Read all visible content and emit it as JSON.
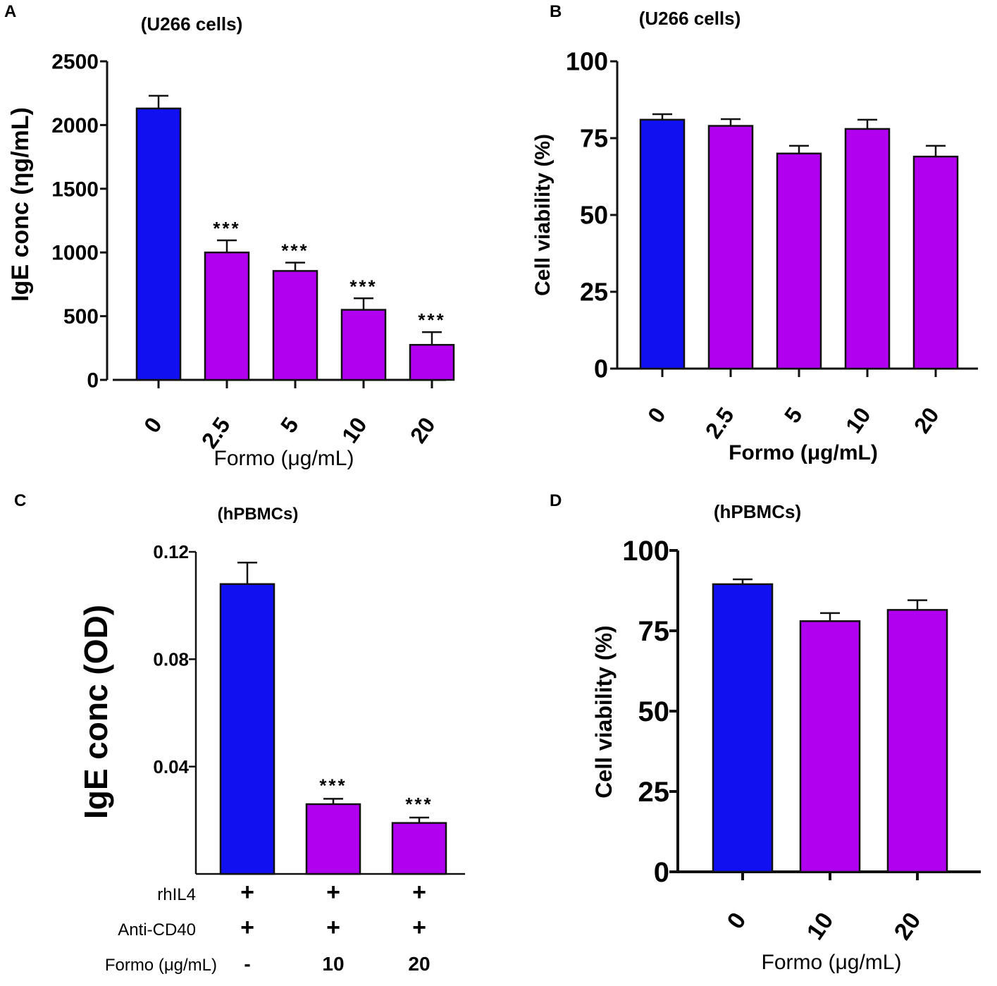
{
  "colors": {
    "control_bar": "#1010f0",
    "treated_bar": "#b100f0",
    "axis": "#111111"
  },
  "chart_data": [
    {
      "panel": "A",
      "type": "bar",
      "title": "(U266 cells)",
      "ylabel": "IgE conc  (ηg/mL)",
      "xlabel": "Formo (μg/mL)",
      "categories": [
        "0",
        "2.5",
        "5",
        "10",
        "20"
      ],
      "values": [
        2130,
        1000,
        855,
        550,
        275
      ],
      "errors": [
        100,
        95,
        65,
        90,
        100
      ],
      "significance": [
        "",
        "***",
        "***",
        "***",
        "***"
      ],
      "ylim": [
        0,
        2500
      ],
      "yticks": [
        "0",
        "500",
        "1000",
        "1500",
        "2000",
        "2500"
      ]
    },
    {
      "panel": "B",
      "type": "bar",
      "title": "(U266 cells)",
      "ylabel": "Cell viability  (%)",
      "xlabel": "Formo (μg/mL)",
      "categories": [
        "0",
        "2.5",
        "5",
        "10",
        "20"
      ],
      "values": [
        81,
        79,
        70,
        78,
        69
      ],
      "errors": [
        1.8,
        2.2,
        2.5,
        3.0,
        3.5
      ],
      "significance": [
        "",
        "",
        "",
        "",
        ""
      ],
      "ylim": [
        0,
        100
      ],
      "yticks": [
        "0",
        "25",
        "50",
        "75",
        "100"
      ]
    },
    {
      "panel": "C",
      "type": "bar",
      "title": "(hPBMCs)",
      "ylabel": "IgE conc (OD)",
      "categories": [
        "-",
        "10",
        "20"
      ],
      "values": [
        0.108,
        0.026,
        0.019
      ],
      "errors": [
        0.008,
        0.002,
        0.002
      ],
      "significance": [
        "",
        "***",
        "***"
      ],
      "ylim": [
        0,
        0.12
      ],
      "yticks": [
        "0.04",
        "0.08",
        "0.12"
      ],
      "conditions": [
        {
          "label": "rhIL4",
          "marks": [
            "+",
            "+",
            "+"
          ]
        },
        {
          "label": "Anti-CD40",
          "marks": [
            "+",
            "+",
            "+"
          ]
        },
        {
          "label": "Formo (μg/mL)",
          "marks": [
            "-",
            "10",
            "20"
          ]
        }
      ]
    },
    {
      "panel": "D",
      "type": "bar",
      "title": "(hPBMCs)",
      "ylabel": "Cell viability (%)",
      "xlabel": "Formo (μg/mL)",
      "categories": [
        "0",
        "10",
        "20"
      ],
      "values": [
        89.5,
        78,
        81.5
      ],
      "errors": [
        1.5,
        2.5,
        3.0
      ],
      "significance": [
        "",
        "",
        ""
      ],
      "ylim": [
        0,
        100
      ],
      "yticks": [
        "0",
        "25",
        "50",
        "75",
        "100"
      ]
    }
  ]
}
